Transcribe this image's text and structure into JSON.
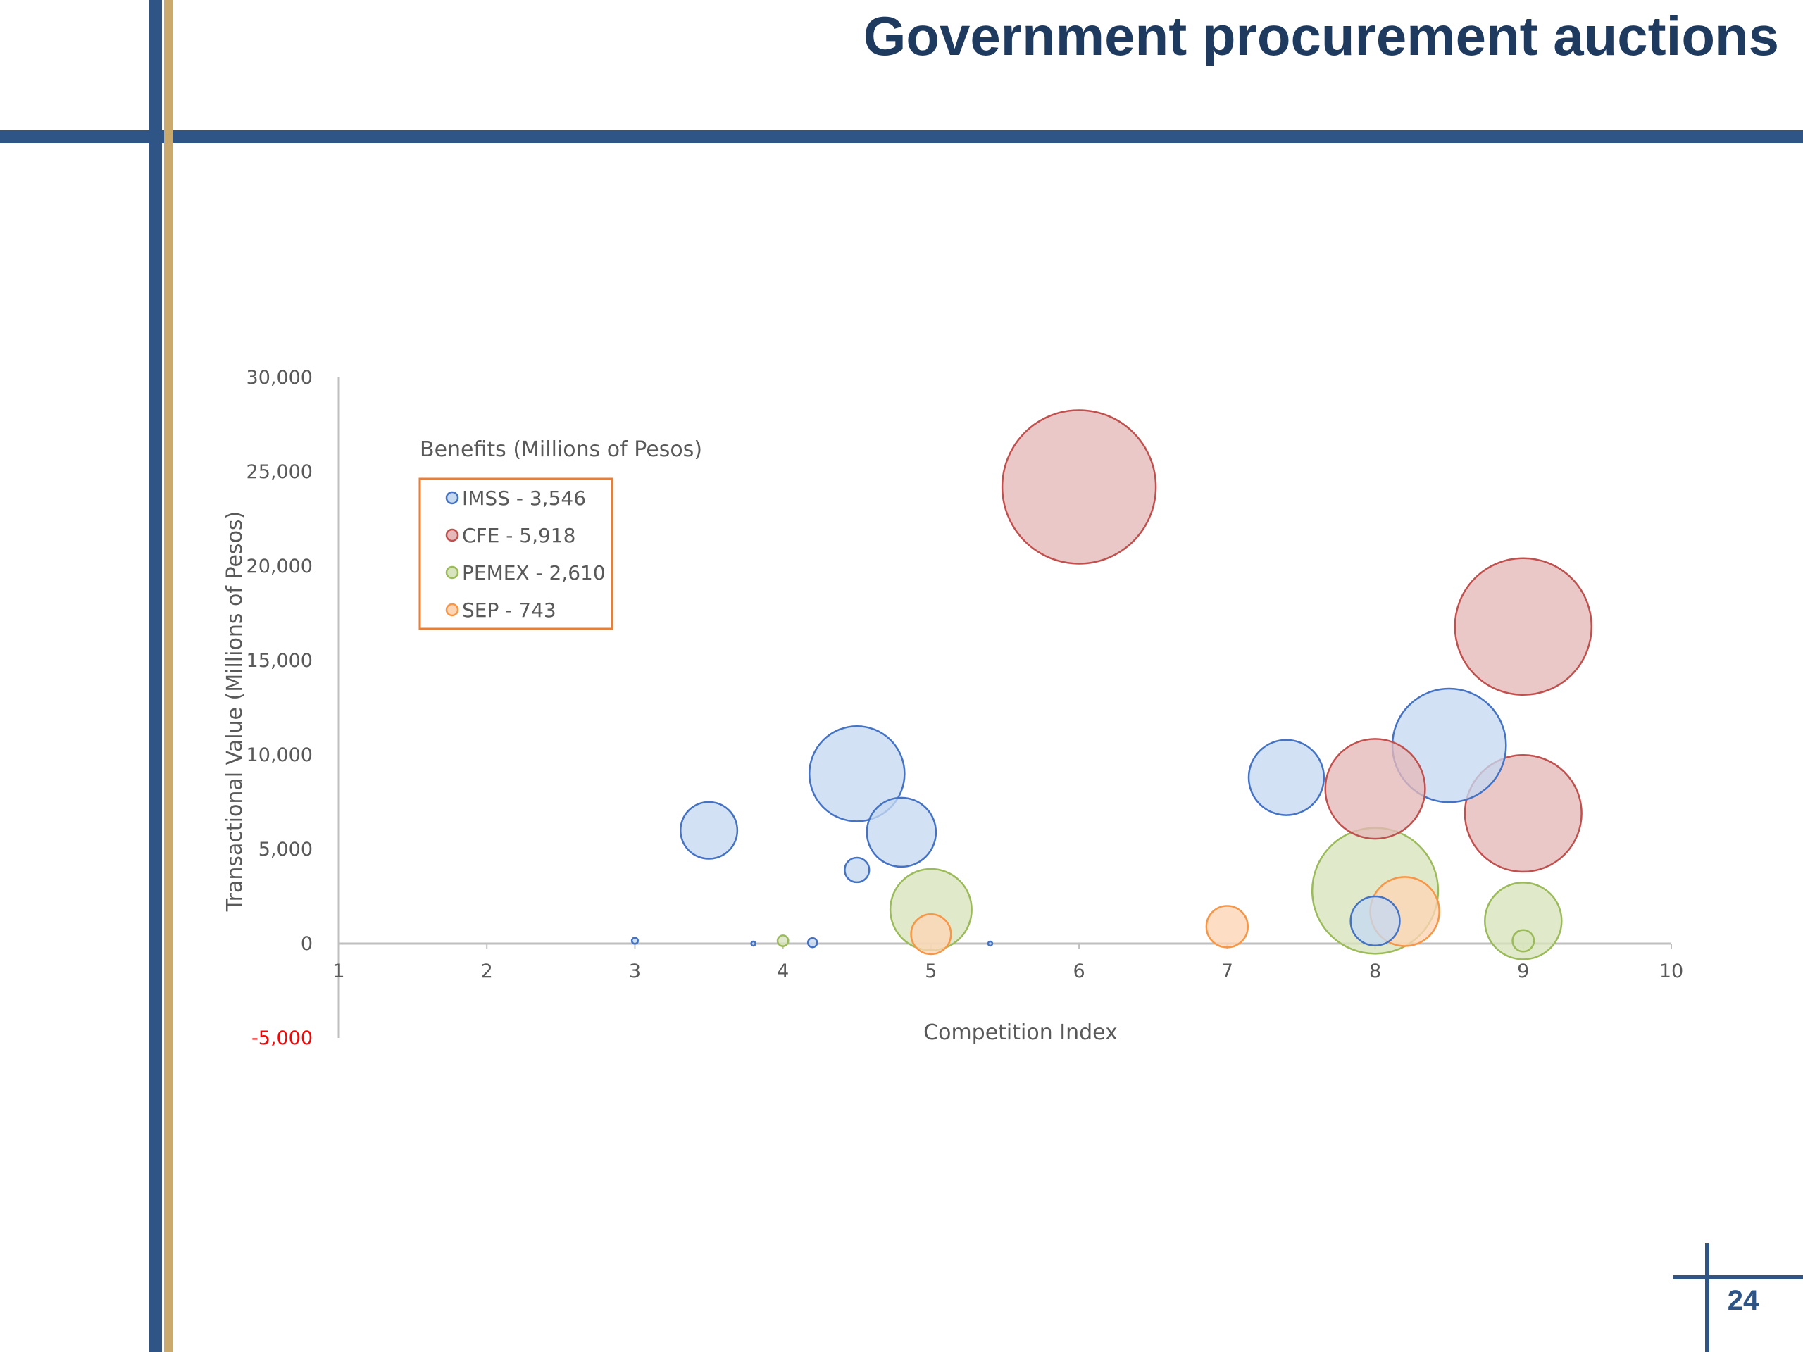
{
  "slide": {
    "title": "Government procurement auctions",
    "page_number": "24"
  },
  "colors": {
    "frame_blue": "#2f5486",
    "frame_gold": "#c9a96e",
    "title": "#1f3a5f",
    "axis_text": "#595959",
    "negative_tick": "#ff0000",
    "legend_border": "#ed7d31"
  },
  "chart_data": {
    "type": "bubble",
    "title": "",
    "xlabel": "Competition Index",
    "ylabel": "Transactional Value  (Millions of Pesos)",
    "xlim": [
      1,
      10
    ],
    "ylim": [
      -5000,
      30000
    ],
    "xticks": [
      "1",
      "2",
      "3",
      "4",
      "5",
      "6",
      "7",
      "8",
      "9",
      "10"
    ],
    "yticks": [
      {
        "value": 30000,
        "label": "30,000"
      },
      {
        "value": 25000,
        "label": "25,000"
      },
      {
        "value": 20000,
        "label": "20,000"
      },
      {
        "value": 15000,
        "label": "15,000"
      },
      {
        "value": 10000,
        "label": "10,000"
      },
      {
        "value": 5000,
        "label": "5,000"
      },
      {
        "value": 0,
        "label": "0"
      },
      {
        "value": -5000,
        "label": "-5,000",
        "color": "#ff0000"
      }
    ],
    "legend": {
      "title": "Benefits (Millions of Pesos)",
      "placement": "top-left"
    },
    "bubble_size_note": "r values are relative bubble sizes (largest = 1.0)",
    "series": [
      {
        "name": "IMSS - 3,546",
        "color": "#4472c4",
        "fill": "#c5d9f1",
        "points": [
          {
            "x": 3.0,
            "y": 150,
            "r": 0.04
          },
          {
            "x": 3.5,
            "y": 6000,
            "r": 0.37
          },
          {
            "x": 3.8,
            "y": 0,
            "r": 0.02
          },
          {
            "x": 4.2,
            "y": 50,
            "r": 0.06
          },
          {
            "x": 4.5,
            "y": 3900,
            "r": 0.16
          },
          {
            "x": 4.5,
            "y": 9000,
            "r": 0.62
          },
          {
            "x": 4.8,
            "y": 5900,
            "r": 0.45
          },
          {
            "x": 5.4,
            "y": 0,
            "r": 0.02
          },
          {
            "x": 7.4,
            "y": 8800,
            "r": 0.49
          },
          {
            "x": 8.0,
            "y": 1200,
            "r": 0.32
          },
          {
            "x": 8.5,
            "y": 10500,
            "r": 0.74
          }
        ]
      },
      {
        "name": "CFE - 5,918",
        "color": "#c0504d",
        "fill": "#e6b9b8",
        "points": [
          {
            "x": 6.0,
            "y": 24200,
            "r": 1.0
          },
          {
            "x": 8.0,
            "y": 8200,
            "r": 0.65
          },
          {
            "x": 9.0,
            "y": 16800,
            "r": 0.89
          },
          {
            "x": 9.0,
            "y": 6900,
            "r": 0.76
          }
        ]
      },
      {
        "name": "PEMEX - 2,610",
        "color": "#9bbb59",
        "fill": "#d7e4bd",
        "points": [
          {
            "x": 4.0,
            "y": 150,
            "r": 0.07
          },
          {
            "x": 5.0,
            "y": 1800,
            "r": 0.53
          },
          {
            "x": 8.0,
            "y": 2800,
            "r": 0.82
          },
          {
            "x": 9.0,
            "y": 1200,
            "r": 0.5
          },
          {
            "x": 9.0,
            "y": 150,
            "r": 0.14
          }
        ]
      },
      {
        "name": "SEP - 743",
        "color": "#f79646",
        "fill": "#fcd5b5",
        "points": [
          {
            "x": 5.0,
            "y": 500,
            "r": 0.26
          },
          {
            "x": 7.0,
            "y": 900,
            "r": 0.27
          },
          {
            "x": 8.2,
            "y": 1700,
            "r": 0.45
          }
        ]
      }
    ]
  }
}
